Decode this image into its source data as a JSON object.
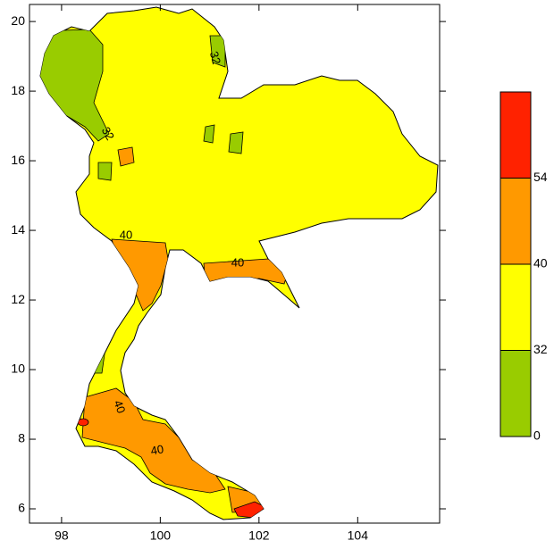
{
  "chart_data": {
    "type": "contour-map",
    "xlim": [
      97.35,
      105.66
    ],
    "xticks": [
      98,
      100,
      102,
      104
    ],
    "ylim": [
      5.59,
      20.49
    ],
    "yticks": [
      6,
      8,
      10,
      12,
      14,
      16,
      18,
      20
    ],
    "contour_labels": [
      "32",
      "32",
      "40",
      "40",
      "40",
      "40"
    ],
    "colorbar": {
      "ticks": [
        0,
        32,
        40,
        54
      ],
      "colors": [
        "#99cc00",
        "#ffff00",
        "#ff9900",
        "#ff2200"
      ]
    }
  }
}
